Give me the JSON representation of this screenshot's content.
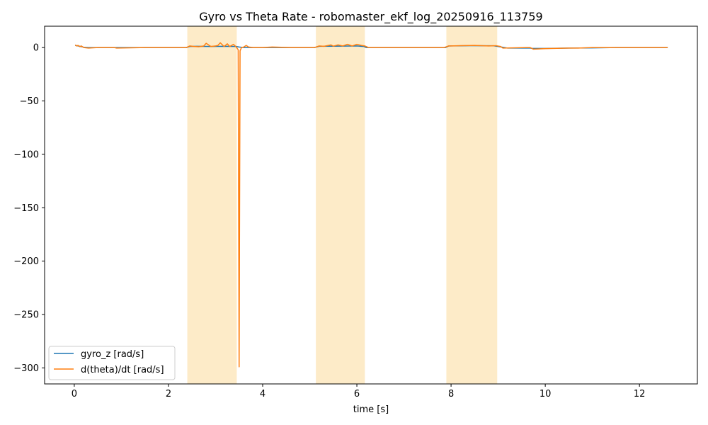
{
  "chart_data": {
    "type": "line",
    "title": "Gyro vs Theta Rate - robomaster_ekf_log_20250916_113759",
    "xlabel": "time [s]",
    "ylabel": "",
    "xlim": [
      -0.63,
      13.23
    ],
    "ylim": [
      -315,
      20
    ],
    "xticks": [
      0,
      2,
      4,
      6,
      8,
      10,
      12
    ],
    "yticks": [
      0,
      -50,
      -100,
      -150,
      -200,
      -250,
      -300
    ],
    "grid": false,
    "legend_position": "lower-left",
    "highlight_spans": [
      {
        "x0": 2.4,
        "x1": 3.45,
        "color": "#fdebc8"
      },
      {
        "x0": 5.13,
        "x1": 6.17,
        "color": "#fdebc8"
      },
      {
        "x0": 7.9,
        "x1": 8.98,
        "color": "#fdebc8"
      }
    ],
    "series": [
      {
        "name": "gyro_z [rad/s]",
        "color": "#1f77b4",
        "x": [
          0.02,
          0.08,
          0.14,
          0.2,
          0.3,
          0.5,
          1.0,
          1.5,
          2.0,
          2.38,
          2.45,
          2.6,
          2.9,
          3.2,
          3.44,
          3.5,
          3.6,
          4.0,
          4.5,
          5.1,
          5.2,
          5.5,
          6.0,
          6.15,
          6.2,
          7.0,
          7.88,
          7.95,
          8.4,
          8.9,
          9.0,
          9.2,
          9.68,
          9.72,
          10.0,
          10.5,
          11.0,
          11.5,
          12.0,
          12.6
        ],
        "y": [
          2,
          1.5,
          1,
          0.3,
          0,
          0,
          0,
          0,
          0,
          0,
          1,
          1.2,
          1,
          1.2,
          1,
          0.5,
          0,
          0,
          0,
          0,
          1.2,
          1.3,
          1.5,
          1,
          0,
          0,
          0,
          1.5,
          1.8,
          1.7,
          1,
          -0.5,
          -0.5,
          -0.8,
          -0.8,
          -0.5,
          -0.3,
          0,
          0,
          0
        ]
      },
      {
        "name": "d(theta)/dt [rad/s]",
        "color": "#ff7f0e",
        "x": [
          0.02,
          0.05,
          0.08,
          0.12,
          0.15,
          0.2,
          0.3,
          0.5,
          0.85,
          0.9,
          1.5,
          2.0,
          2.38,
          2.45,
          2.55,
          2.65,
          2.75,
          2.8,
          2.9,
          3.0,
          3.05,
          3.1,
          3.18,
          3.25,
          3.3,
          3.38,
          3.44,
          3.48,
          3.5,
          3.51,
          3.52,
          3.55,
          3.6,
          3.65,
          3.7,
          3.8,
          4.0,
          4.2,
          4.6,
          5.1,
          5.2,
          5.3,
          5.45,
          5.5,
          5.6,
          5.7,
          5.8,
          5.9,
          6.0,
          6.1,
          6.17,
          6.25,
          7.0,
          7.85,
          7.95,
          8.2,
          8.5,
          8.8,
          8.95,
          9.05,
          9.1,
          9.6,
          9.68,
          9.75,
          10.0,
          10.5,
          10.7,
          11.0,
          12.0,
          12.6
        ],
        "y": [
          2.5,
          1.5,
          2,
          0.8,
          1.5,
          0,
          -0.5,
          0,
          0,
          -0.5,
          0,
          0,
          0,
          1.5,
          1,
          0.8,
          1.5,
          4,
          1,
          1.5,
          2,
          4.5,
          1,
          3.5,
          1,
          3,
          0.5,
          -2,
          -299,
          -150,
          -3,
          0,
          0.5,
          2,
          0.5,
          0,
          0,
          0.5,
          0,
          0,
          1.5,
          1.2,
          2.5,
          1.3,
          2.5,
          1.5,
          3,
          1.5,
          3,
          2,
          1.5,
          0,
          0,
          0,
          1.5,
          1.8,
          2,
          1.5,
          1.8,
          1,
          -0.5,
          0,
          0,
          -1.5,
          -1,
          -0.5,
          -0.5,
          0,
          0,
          0
        ]
      }
    ]
  }
}
